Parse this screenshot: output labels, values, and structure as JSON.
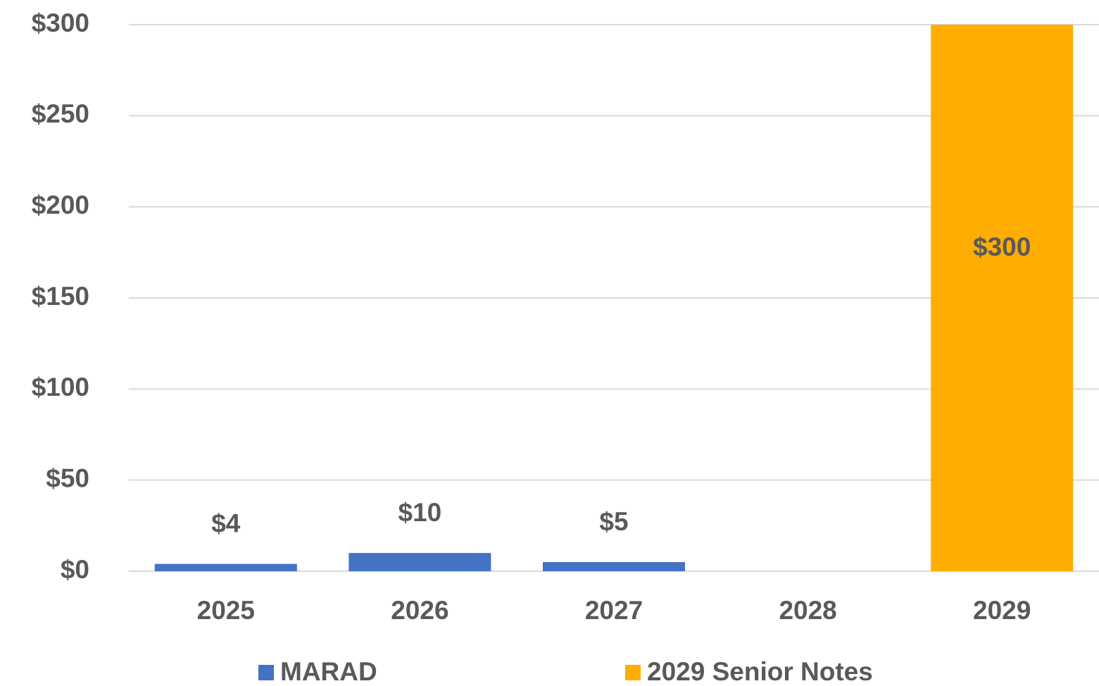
{
  "chart_data": {
    "type": "bar",
    "stacked": true,
    "categories": [
      "2025",
      "2026",
      "2027",
      "2028",
      "2029"
    ],
    "series": [
      {
        "name": "MARAD",
        "color": "#4472c4",
        "values": [
          4,
          10,
          5,
          null,
          null
        ],
        "value_labels": [
          "$4",
          "$10",
          "$5",
          null,
          null
        ]
      },
      {
        "name": "2029 Senior Notes",
        "color": "#ffad00",
        "values": [
          null,
          null,
          null,
          null,
          300
        ],
        "value_labels": [
          null,
          null,
          null,
          null,
          "$300"
        ]
      }
    ],
    "ylim": [
      0,
      300
    ],
    "yticks": [
      {
        "value": 0,
        "label": "$0"
      },
      {
        "value": 50,
        "label": "$50"
      },
      {
        "value": 100,
        "label": "$100"
      },
      {
        "value": 150,
        "label": "$150"
      },
      {
        "value": 200,
        "label": "$200"
      },
      {
        "value": 250,
        "label": "$250"
      },
      {
        "value": 300,
        "label": "$300"
      }
    ],
    "grid": true,
    "legend": "bottom"
  }
}
